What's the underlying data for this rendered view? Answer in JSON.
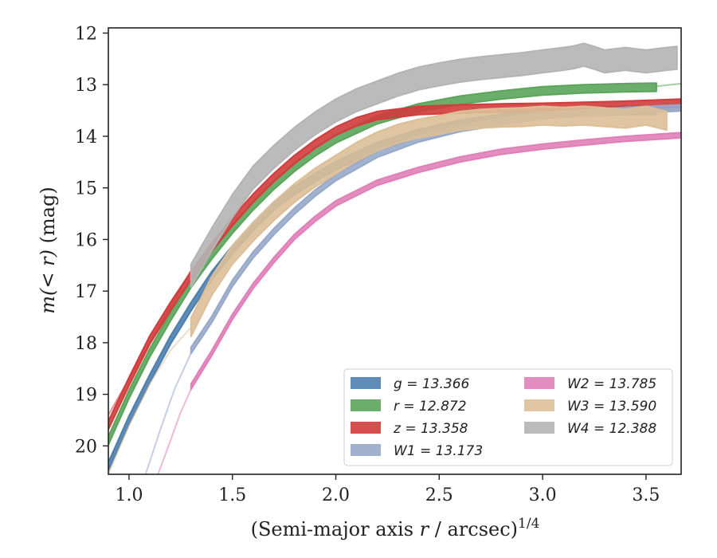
{
  "chart_data": {
    "type": "line",
    "xlabel_pre": "(Semi-major axis ",
    "xlabel_var": "r",
    "xlabel_post": " / arcsec)",
    "xlabel_sup": "1/4",
    "ylabel_pre": "m(< r)",
    "ylabel_post": " (mag)",
    "xlim": [
      0.9,
      3.67
    ],
    "ylim": [
      20.55,
      11.9
    ],
    "y_inverted": true,
    "x_ticks": [
      "1.0",
      "1.5",
      "2.0",
      "2.5",
      "3.0",
      "3.5"
    ],
    "y_ticks": [
      "12",
      "13",
      "14",
      "15",
      "16",
      "17",
      "18",
      "19",
      "20"
    ],
    "legend_location": "lower right",
    "series": [
      {
        "name": "g = 13.366",
        "color": "#4c7fae",
        "band": 0.08,
        "x": [
          0.9,
          1.0,
          1.1,
          1.2,
          1.3,
          1.4,
          1.5,
          1.6,
          1.7,
          1.8,
          1.9,
          2.0,
          2.2,
          2.4,
          2.6,
          2.8,
          3.0,
          3.2,
          3.4,
          3.55
        ],
        "y": [
          20.4,
          19.5,
          18.7,
          17.95,
          17.3,
          16.7,
          16.2,
          15.75,
          15.35,
          15.05,
          14.8,
          14.57,
          14.2,
          13.95,
          13.77,
          13.65,
          13.56,
          13.52,
          13.5,
          13.5
        ],
        "faint_x": [
          3.55,
          3.67
        ],
        "faint_y": [
          13.5,
          13.48
        ]
      },
      {
        "name": "r = 12.872",
        "color": "#5ba55b",
        "band": 0.08,
        "x": [
          0.9,
          1.0,
          1.1,
          1.2,
          1.3,
          1.4,
          1.5,
          1.6,
          1.7,
          1.8,
          1.9,
          2.0,
          2.2,
          2.4,
          2.6,
          2.8,
          3.0,
          3.2,
          3.4,
          3.55
        ],
        "y": [
          19.9,
          19.0,
          18.2,
          17.5,
          16.85,
          16.3,
          15.8,
          15.35,
          14.95,
          14.6,
          14.3,
          14.05,
          13.68,
          13.45,
          13.3,
          13.2,
          13.12,
          13.08,
          13.06,
          13.05
        ],
        "faint_x": [
          3.55,
          3.67
        ],
        "faint_y": [
          13.03,
          12.98
        ]
      },
      {
        "name": "z = 13.358",
        "color": "#d23c3c",
        "band": 0.08,
        "x": [
          0.9,
          1.0,
          1.1,
          1.2,
          1.3,
          1.4,
          1.5,
          1.6,
          1.7,
          1.8,
          1.9,
          2.0,
          2.1,
          2.2,
          2.4,
          2.6,
          2.8,
          3.0,
          3.2,
          3.4,
          3.67
        ],
        "y": [
          19.6,
          18.75,
          17.95,
          17.3,
          16.7,
          16.15,
          15.65,
          15.2,
          14.8,
          14.45,
          14.15,
          13.9,
          13.72,
          13.6,
          13.5,
          13.47,
          13.45,
          13.44,
          13.42,
          13.4,
          13.36
        ],
        "faint_x": [
          0.9,
          1.3
        ],
        "faint_y": [
          19.4,
          16.6
        ]
      },
      {
        "name": "W1 = 13.173",
        "color": "#97a8c9",
        "band": 0.06,
        "x": [
          1.3,
          1.4,
          1.5,
          1.6,
          1.7,
          1.8,
          1.9,
          2.0,
          2.2,
          2.4,
          2.6,
          2.8,
          3.0,
          3.2,
          3.4,
          3.67
        ],
        "y": [
          18.15,
          17.55,
          16.85,
          16.3,
          15.85,
          15.45,
          15.1,
          14.8,
          14.35,
          14.05,
          13.85,
          13.72,
          13.6,
          13.55,
          13.5,
          13.45
        ],
        "faint_x": [
          1.08,
          1.15,
          1.22,
          1.3
        ],
        "faint_y": [
          20.55,
          19.7,
          18.9,
          18.2
        ]
      },
      {
        "name": "W2 = 13.785",
        "color": "#e07fb8",
        "band": 0.05,
        "x": [
          1.3,
          1.4,
          1.5,
          1.6,
          1.7,
          1.8,
          1.9,
          2.0,
          2.2,
          2.4,
          2.6,
          2.8,
          3.0,
          3.2,
          3.4,
          3.67
        ],
        "y": [
          18.85,
          18.2,
          17.5,
          16.9,
          16.4,
          15.95,
          15.6,
          15.3,
          14.9,
          14.65,
          14.45,
          14.3,
          14.2,
          14.12,
          14.05,
          13.98
        ],
        "faint_x": [
          1.14,
          1.2,
          1.25,
          1.3
        ],
        "faint_y": [
          20.55,
          19.9,
          19.35,
          18.9
        ]
      },
      {
        "name": "W3 = 13.590",
        "color": "#dcbf98",
        "band": 0.18,
        "x": [
          1.3,
          1.4,
          1.5,
          1.6,
          1.7,
          1.8,
          1.9,
          2.0,
          2.1,
          2.2,
          2.3,
          2.4,
          2.5,
          2.6,
          2.7,
          2.8,
          2.9,
          3.0,
          3.1,
          3.2,
          3.3,
          3.4,
          3.5,
          3.6
        ],
        "y": [
          17.7,
          16.9,
          16.3,
          15.85,
          15.45,
          15.1,
          14.8,
          14.55,
          14.3,
          14.1,
          13.95,
          13.85,
          13.78,
          13.7,
          13.66,
          13.64,
          13.63,
          13.6,
          13.62,
          13.6,
          13.63,
          13.66,
          13.6,
          13.7
        ],
        "faint_x": [
          0.9,
          1.0,
          1.1,
          1.2,
          1.3
        ],
        "faint_y": [
          20.55,
          19.6,
          18.8,
          18.15,
          17.7
        ]
      },
      {
        "name": "W4 = 12.388",
        "color": "#b4b4b4",
        "band": 0.22,
        "x": [
          1.3,
          1.4,
          1.5,
          1.6,
          1.7,
          1.8,
          1.9,
          2.0,
          2.1,
          2.2,
          2.3,
          2.4,
          2.5,
          2.6,
          2.7,
          2.8,
          2.9,
          3.0,
          3.1,
          3.15,
          3.2,
          3.25,
          3.3,
          3.4,
          3.5,
          3.6,
          3.65
        ],
        "y": [
          16.7,
          16.0,
          15.35,
          14.8,
          14.4,
          14.05,
          13.75,
          13.5,
          13.3,
          13.15,
          13.0,
          12.88,
          12.8,
          12.73,
          12.68,
          12.64,
          12.6,
          12.55,
          12.5,
          12.47,
          12.42,
          12.48,
          12.55,
          12.5,
          12.55,
          12.5,
          12.48
        ],
        "faint_x": [],
        "faint_y": []
      }
    ]
  }
}
